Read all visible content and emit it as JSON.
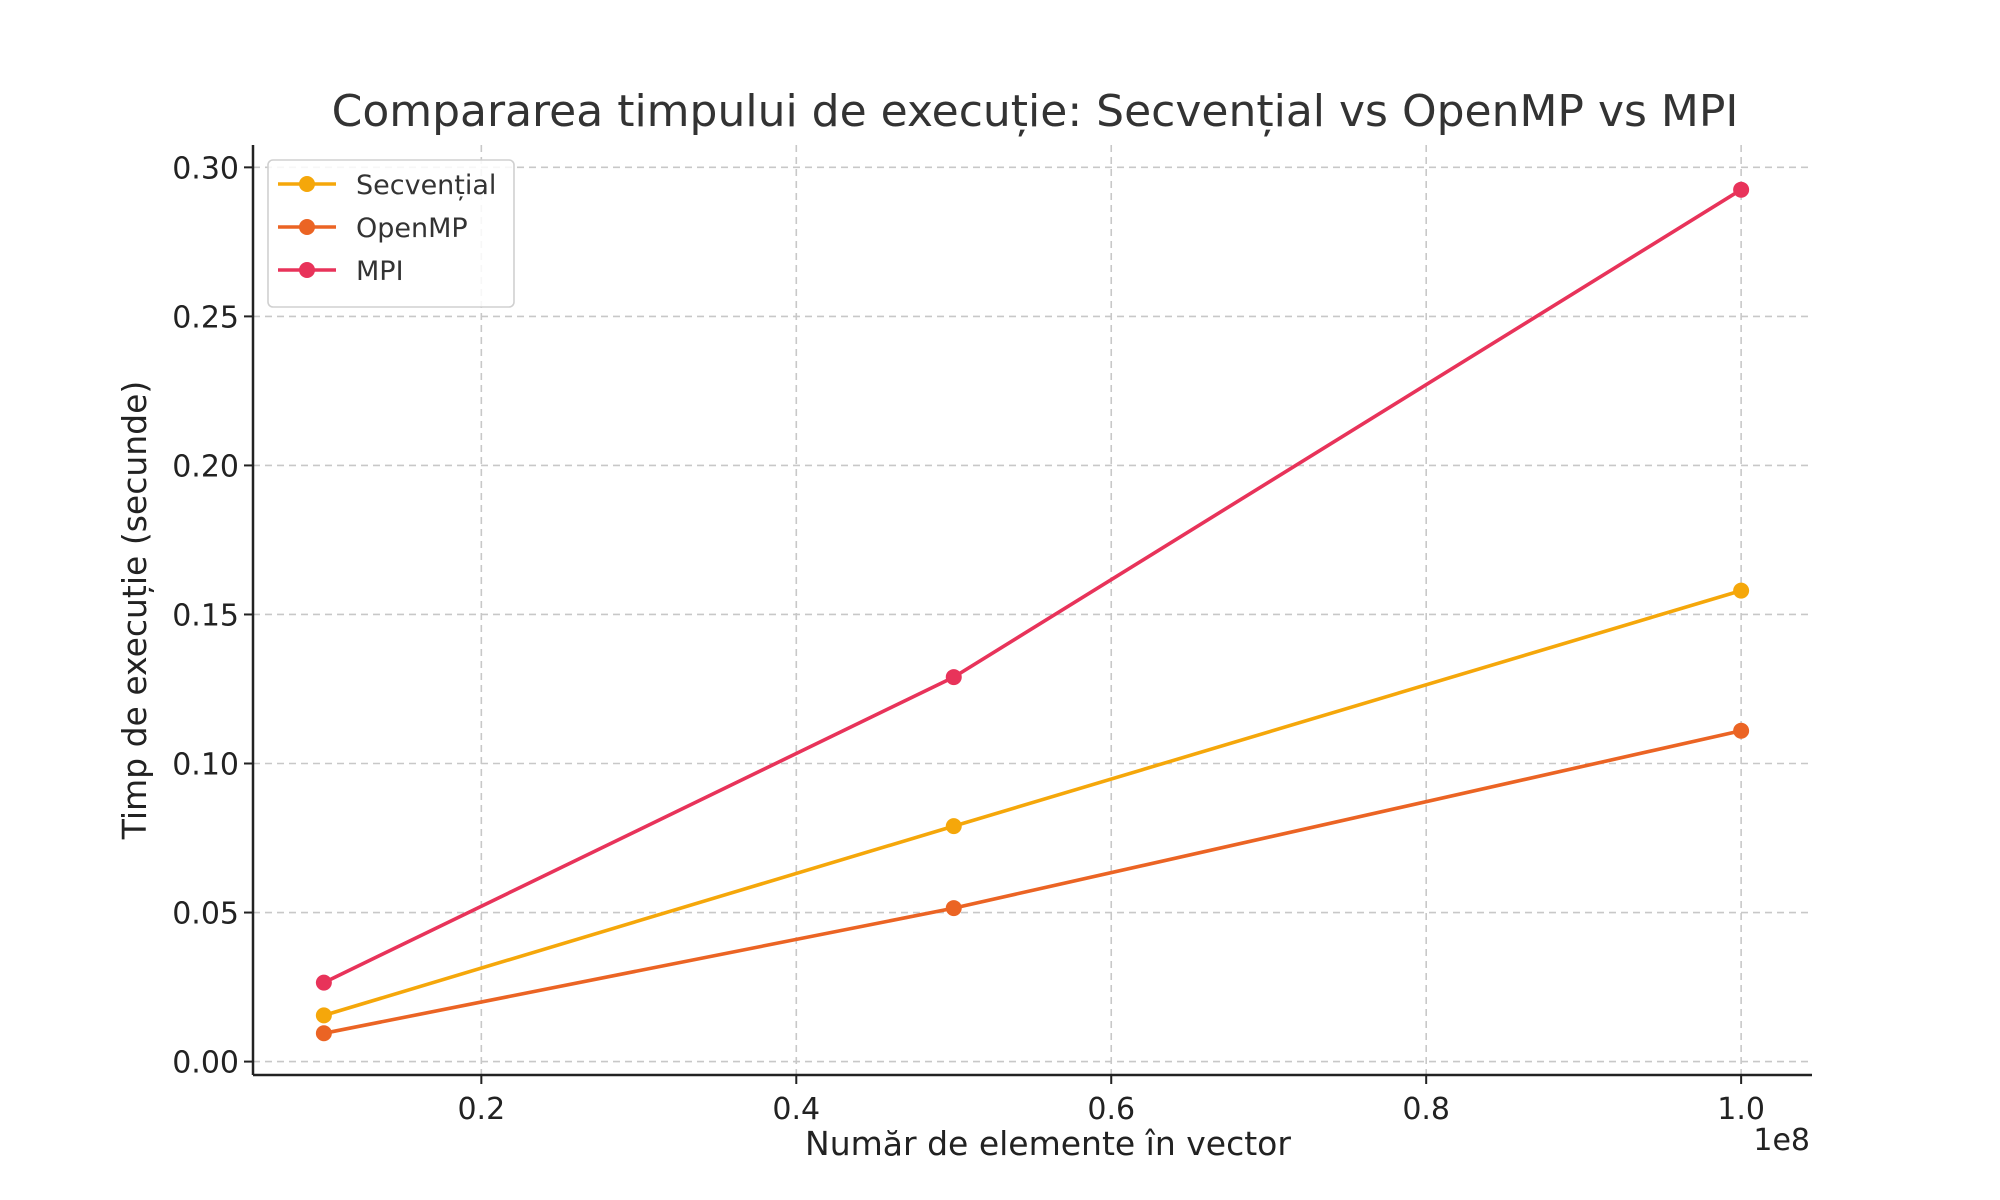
{
  "chart_data": {
    "type": "line",
    "title": "Compararea timpului de execuție: Secvențial vs OpenMP vs MPI",
    "xlabel": "Număr de elemente în vector",
    "ylabel": "Timp de execuție (secunde)",
    "x_offset_label": "1e8",
    "x": [
      10000000,
      50000000,
      100000000
    ],
    "xlim": [
      5500000,
      104500000
    ],
    "ylim": [
      -0.0045,
      0.3075
    ],
    "xticks": [
      20000000,
      40000000,
      60000000,
      80000000,
      100000000
    ],
    "xtick_labels": [
      "0.2",
      "0.4",
      "0.6",
      "0.8",
      "1.0"
    ],
    "yticks": [
      0,
      0.05,
      0.1,
      0.15,
      0.2,
      0.25,
      0.3
    ],
    "ytick_labels": [
      "0.00",
      "0.05",
      "0.10",
      "0.15",
      "0.20",
      "0.25",
      "0.30"
    ],
    "grid": true,
    "legend_position": "top-left",
    "series": [
      {
        "name": "Secvențial",
        "color": "#F5A70A",
        "values": [
          0.0155,
          0.079,
          0.158
        ]
      },
      {
        "name": "OpenMP",
        "color": "#EB6424",
        "values": [
          0.0095,
          0.0515,
          0.111
        ]
      },
      {
        "name": "MPI",
        "color": "#E8335A",
        "values": [
          0.0265,
          0.129,
          0.2925
        ]
      }
    ]
  }
}
